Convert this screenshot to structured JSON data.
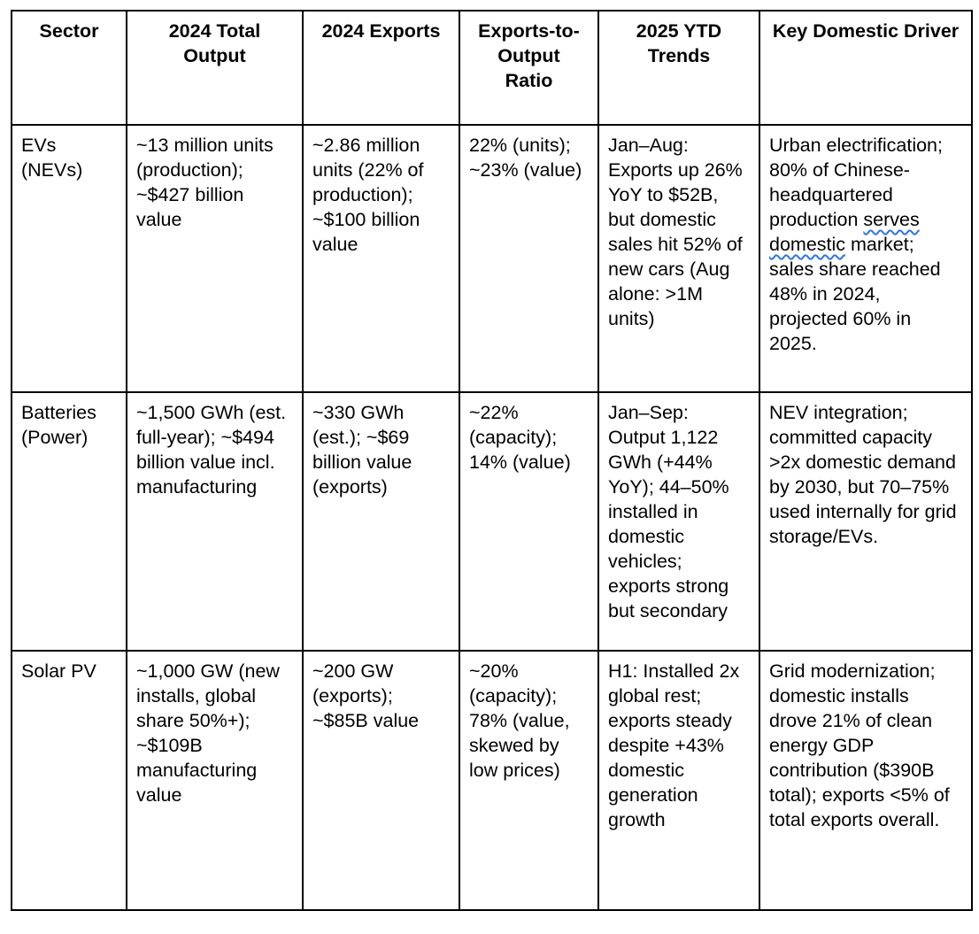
{
  "colors": {
    "background": "#ffffff",
    "text": "#000000",
    "table_border": "#000000",
    "spellcheck_underline": "#2e74e8"
  },
  "table": {
    "headers": [
      "Sector",
      "2024 Total Output",
      "2024 Exports",
      "Exports-to-Output Ratio",
      "2025 YTD Trends",
      "Key Domestic Driver"
    ],
    "rows": [
      {
        "cells": [
          {
            "text": "EVs (NEVs)"
          },
          {
            "text": "~13 million units (production); ~$427 billion value"
          },
          {
            "text": "~2.86 million units (22% of production); ~$100 billion value"
          },
          {
            "text": "22% (units); ~23% (value)"
          },
          {
            "text": "Jan–Aug: Exports up 26% YoY to $52B, but domestic sales hit 52% of new cars (Aug alone: >1M units)"
          },
          {
            "parts": [
              {
                "text": "Urban electrification; 80% of Chinese-headquartered production "
              },
              {
                "text": "serves",
                "misspelled": true
              },
              {
                "text": " "
              },
              {
                "text": "domestic",
                "misspelled": true
              },
              {
                "text": " market; sales share reached 48% in 2024, projected 60% in 2025."
              }
            ]
          }
        ]
      },
      {
        "cells": [
          {
            "text": "Batteries (Power)"
          },
          {
            "text": "~1,500 GWh (est. full-year); ~$494 billion value incl. manufacturing"
          },
          {
            "text": "~330 GWh (est.); ~$69 billion value (exports)"
          },
          {
            "text": "~22% (capacity); 14% (value)"
          },
          {
            "text": "Jan–Sep: Output 1,122 GWh (+44% YoY); 44–50% installed in domestic vehicles; exports strong but secondary"
          },
          {
            "text": "NEV integration; committed capacity >2x domestic demand by 2030, but 70–75% used internally for grid storage/EVs."
          }
        ]
      },
      {
        "cells": [
          {
            "text": "Solar PV"
          },
          {
            "text": "~1,000 GW (new installs, global share 50%+); ~$109B manufacturing value"
          },
          {
            "text": "~200 GW (exports); ~$85B value"
          },
          {
            "text": "~20% (capacity); 78% (value, skewed by low prices)"
          },
          {
            "text": "H1: Installed 2x global rest; exports steady despite +43% domestic generation growth"
          },
          {
            "text": "Grid modernization; domestic installs drove 21% of clean energy GDP contribution ($390B total); exports <5% of total exports overall."
          }
        ]
      }
    ]
  }
}
